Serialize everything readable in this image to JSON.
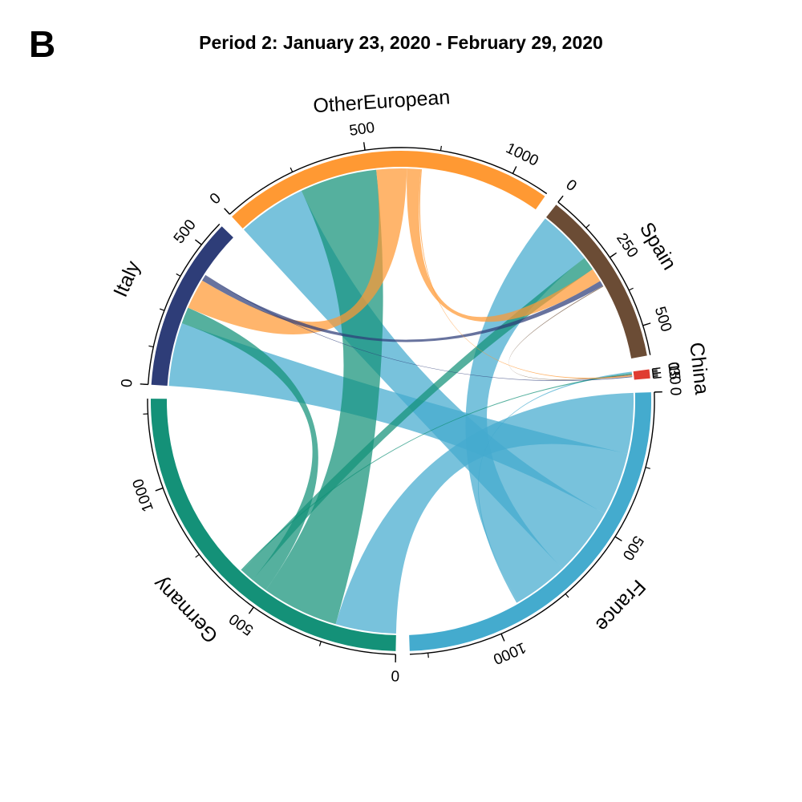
{
  "panel_letter": "B",
  "title": "Period 2: January 23, 2020 - February 29, 2020",
  "chart_data": {
    "type": "chord",
    "title": "Period 2: January 23, 2020 - February 29, 2020",
    "sectors": [
      {
        "name": "France",
        "total": 1310,
        "color": "#44ABCE",
        "ticks": [
          0,
          500,
          1000
        ]
      },
      {
        "name": "Germany",
        "total": 1300,
        "color": "#149178",
        "ticks": [
          0,
          500,
          1000
        ]
      },
      {
        "name": "Italy",
        "total": 590,
        "color": "#2E3D78",
        "ticks": [
          0,
          500
        ]
      },
      {
        "name": "OtherEuropean",
        "total": 1130,
        "color": "#FF9933",
        "ticks": [
          0,
          500,
          1000
        ]
      },
      {
        "name": "Spain",
        "total": 600,
        "color": "#6B4C35",
        "ticks": [
          0,
          250,
          500
        ]
      },
      {
        "name": "China",
        "total": 30,
        "color": "#E03C31",
        "ticks": [
          0,
          15,
          30
        ]
      }
    ],
    "flows": [
      {
        "from": "France",
        "to": "Germany",
        "value": 220
      },
      {
        "from": "France",
        "to": "Italy",
        "value": 230
      },
      {
        "from": "France",
        "to": "OtherEuropean",
        "value": 250
      },
      {
        "from": "France",
        "to": "Spain",
        "value": 200
      },
      {
        "from": "France",
        "to": "China",
        "value": 5
      },
      {
        "from": "Germany",
        "to": "OtherEuropean",
        "value": 280
      },
      {
        "from": "Germany",
        "to": "Italy",
        "value": 60
      },
      {
        "from": "Germany",
        "to": "Spain",
        "value": 50
      },
      {
        "from": "Germany",
        "to": "China",
        "value": 5
      },
      {
        "from": "OtherEuropean",
        "to": "Italy",
        "value": 110
      },
      {
        "from": "OtherEuropean",
        "to": "Spain",
        "value": 50
      },
      {
        "from": "Italy",
        "to": "Spain",
        "value": 20
      },
      {
        "from": "Spain",
        "to": "China",
        "value": 3
      },
      {
        "from": "OtherEuropean",
        "to": "China",
        "value": 4
      },
      {
        "from": "Italy",
        "to": "China",
        "value": 3
      },
      {
        "from": "France",
        "to": "France",
        "value": 0
      }
    ]
  }
}
